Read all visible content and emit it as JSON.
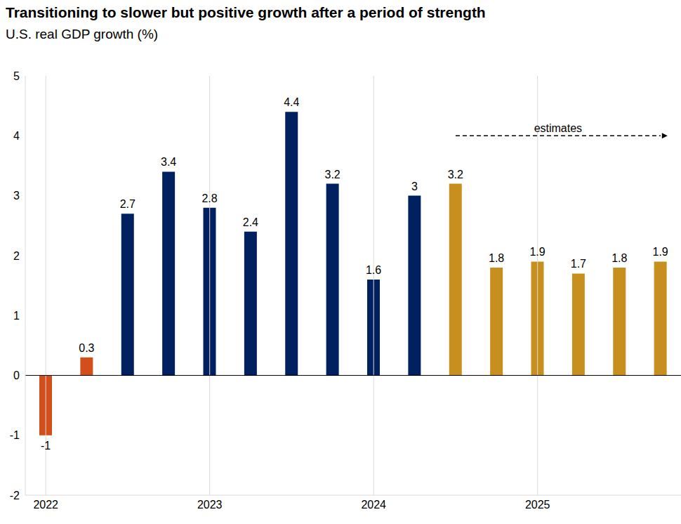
{
  "chart_data": {
    "type": "bar",
    "title": "Transitioning to slower but positive growth after a period of strength",
    "subtitle": "U.S. real GDP growth (%)",
    "categories": [
      "2022",
      null,
      null,
      null,
      "2023",
      null,
      null,
      null,
      "2024",
      null,
      null,
      null,
      "2025",
      null,
      null,
      null
    ],
    "values": [
      -1,
      0.3,
      2.7,
      3.4,
      2.8,
      2.4,
      4.4,
      3.2,
      1.6,
      3,
      3.2,
      1.8,
      1.9,
      1.7,
      1.8,
      1.9
    ],
    "colors": [
      "#d24f1c",
      "#d24f1c",
      "#002060",
      "#002060",
      "#002060",
      "#002060",
      "#002060",
      "#002060",
      "#002060",
      "#002060",
      "#c68f1e",
      "#c68f1e",
      "#c68f1e",
      "#c68f1e",
      "#c68f1e",
      "#c68f1e"
    ],
    "ylim": [
      -2,
      5
    ],
    "yticks": [
      -2,
      -1,
      0,
      1,
      2,
      3,
      4,
      5
    ],
    "grid": true,
    "data_labels": true,
    "annotations": [
      {
        "text": "estimates"
      }
    ]
  }
}
